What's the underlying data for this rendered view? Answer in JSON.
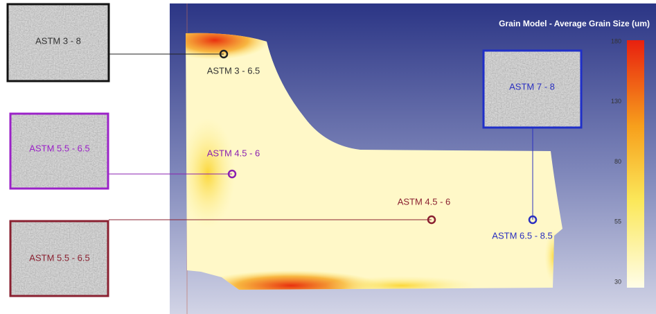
{
  "title": "Grain Model - Average Grain Size (um)",
  "colorbar_ticks": [
    180,
    130,
    80,
    55,
    30
  ],
  "insets": [
    {
      "label": "ASTM 3 - 8"
    },
    {
      "label": "ASTM 5.5 - 6.5"
    },
    {
      "label": "ASTM 5.5 - 6.5"
    },
    {
      "label": "ASTM 7 - 8"
    }
  ],
  "probes": [
    {
      "label": "ASTM 3 - 6.5"
    },
    {
      "label": "ASTM 4.5 - 6"
    },
    {
      "label": "ASTM 4.5 - 6"
    },
    {
      "label": "ASTM 6.5 - 8.5"
    }
  ]
}
